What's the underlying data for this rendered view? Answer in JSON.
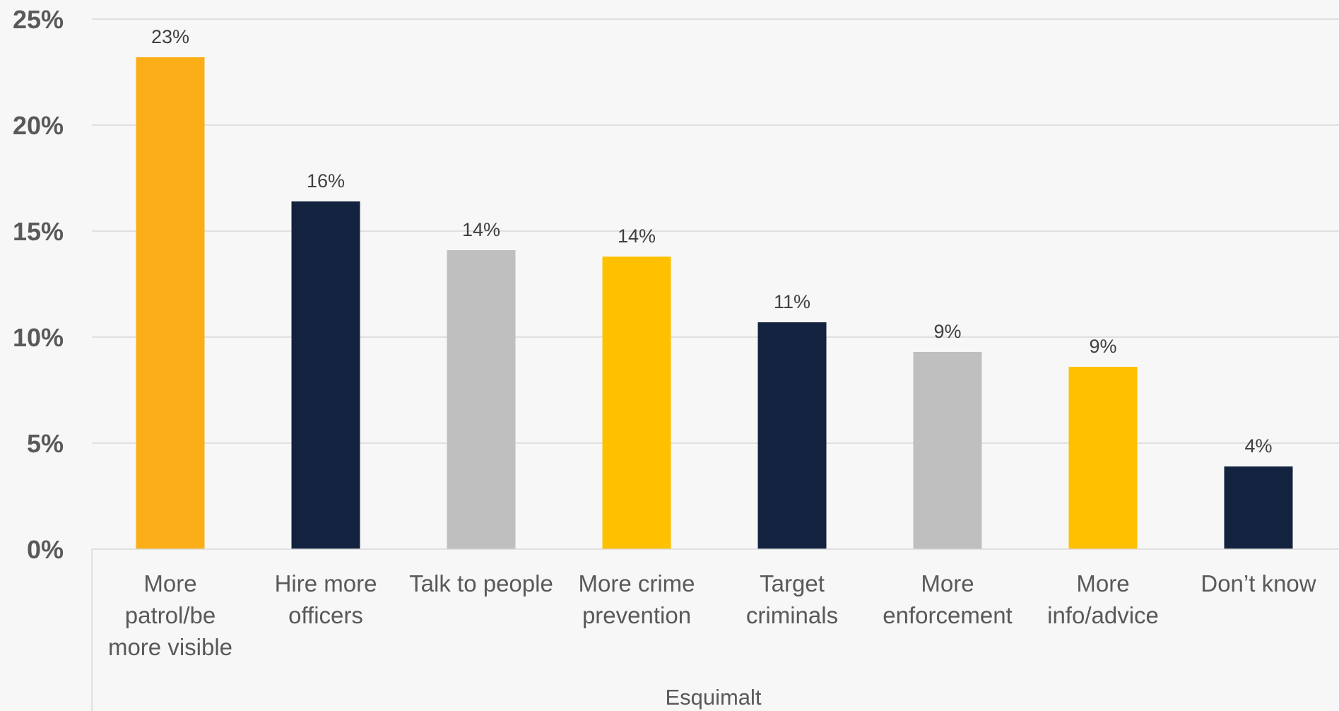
{
  "chart_data": {
    "type": "bar",
    "categories": [
      [
        "More",
        "patrol/be",
        "more visible"
      ],
      [
        "Hire more",
        "officers"
      ],
      [
        "Talk to people"
      ],
      [
        "More crime",
        "prevention"
      ],
      [
        "Target",
        "criminals"
      ],
      [
        "More",
        "enforcement"
      ],
      [
        "More",
        "info/advice"
      ],
      [
        "Don’t know"
      ]
    ],
    "values": [
      23.2,
      16.4,
      14.1,
      13.8,
      10.7,
      9.3,
      8.6,
      3.9
    ],
    "data_labels": [
      "23%",
      "16%",
      "14%",
      "14%",
      "11%",
      "9%",
      "9%",
      "4%"
    ],
    "colors": [
      "#FBAE17",
      "#13233F",
      "#BFBFBF",
      "#FFC000",
      "#13233F",
      "#BFBFBF",
      "#FFC000",
      "#13233F"
    ],
    "group_label": "Esquimalt",
    "yticks": [
      0,
      5,
      10,
      15,
      20,
      25
    ],
    "ytick_labels": [
      "0%",
      "5%",
      "10%",
      "15%",
      "20%",
      "25%"
    ],
    "ylim": [
      0,
      25
    ],
    "grid": true,
    "legend": "none"
  }
}
